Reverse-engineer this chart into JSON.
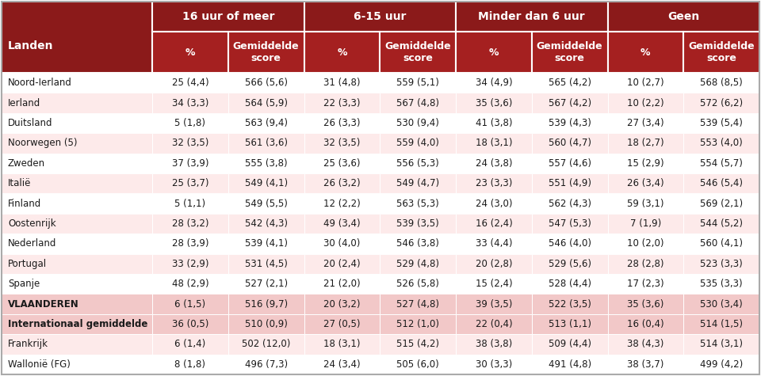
{
  "title_row": [
    "16 uur of meer",
    "6-15 uur",
    "Minder dan 6 uur",
    "Geen"
  ],
  "sub_headers": [
    "%",
    "Gemiddelde\nscore"
  ],
  "col_header": "Landen",
  "rows": [
    {
      "land": "Noord-Ierland",
      "bold": false,
      "data": [
        "25 (4,4)",
        "566 (5,6)",
        "31 (4,8)",
        "559 (5,1)",
        "34 (4,9)",
        "565 (4,2)",
        "10 (2,7)",
        "568 (8,5)"
      ]
    },
    {
      "land": "Ierland",
      "bold": false,
      "data": [
        "34 (3,3)",
        "564 (5,9)",
        "22 (3,3)",
        "567 (4,8)",
        "35 (3,6)",
        "567 (4,2)",
        "10 (2,2)",
        "572 (6,2)"
      ]
    },
    {
      "land": "Duitsland",
      "bold": false,
      "data": [
        "5 (1,8)",
        "563 (9,4)",
        "26 (3,3)",
        "530 (9,4)",
        "41 (3,8)",
        "539 (4,3)",
        "27 (3,4)",
        "539 (5,4)"
      ]
    },
    {
      "land": "Noorwegen (5)",
      "bold": false,
      "data": [
        "32 (3,5)",
        "561 (3,6)",
        "32 (3,5)",
        "559 (4,0)",
        "18 (3,1)",
        "560 (4,7)",
        "18 (2,7)",
        "553 (4,0)"
      ]
    },
    {
      "land": "Zweden",
      "bold": false,
      "data": [
        "37 (3,9)",
        "555 (3,8)",
        "25 (3,6)",
        "556 (5,3)",
        "24 (3,8)",
        "557 (4,6)",
        "15 (2,9)",
        "554 (5,7)"
      ]
    },
    {
      "land": "Italië",
      "bold": false,
      "data": [
        "25 (3,7)",
        "549 (4,1)",
        "26 (3,2)",
        "549 (4,7)",
        "23 (3,3)",
        "551 (4,9)",
        "26 (3,4)",
        "546 (5,4)"
      ]
    },
    {
      "land": "Finland",
      "bold": false,
      "data": [
        "5 (1,1)",
        "549 (5,5)",
        "12 (2,2)",
        "563 (5,3)",
        "24 (3,0)",
        "562 (4,3)",
        "59 (3,1)",
        "569 (2,1)"
      ]
    },
    {
      "land": "Oostenrijk",
      "bold": false,
      "data": [
        "28 (3,2)",
        "542 (4,3)",
        "49 (3,4)",
        "539 (3,5)",
        "16 (2,4)",
        "547 (5,3)",
        "7 (1,9)",
        "544 (5,2)"
      ]
    },
    {
      "land": "Nederland",
      "bold": false,
      "data": [
        "28 (3,9)",
        "539 (4,1)",
        "30 (4,0)",
        "546 (3,8)",
        "33 (4,4)",
        "546 (4,0)",
        "10 (2,0)",
        "560 (4,1)"
      ]
    },
    {
      "land": "Portugal",
      "bold": false,
      "data": [
        "33 (2,9)",
        "531 (4,5)",
        "20 (2,4)",
        "529 (4,8)",
        "20 (2,8)",
        "529 (5,6)",
        "28 (2,8)",
        "523 (3,3)"
      ]
    },
    {
      "land": "Spanje",
      "bold": false,
      "data": [
        "48 (2,9)",
        "527 (2,1)",
        "21 (2,0)",
        "526 (5,8)",
        "15 (2,4)",
        "528 (4,4)",
        "17 (2,3)",
        "535 (3,3)"
      ]
    },
    {
      "land": "VLAANDEREN",
      "bold": true,
      "data": [
        "6 (1,5)",
        "516 (9,7)",
        "20 (3,2)",
        "527 (4,8)",
        "39 (3,5)",
        "522 (3,5)",
        "35 (3,6)",
        "530 (3,4)"
      ]
    },
    {
      "land": "Internationaal gemiddelde",
      "bold": true,
      "data": [
        "36 (0,5)",
        "510 (0,9)",
        "27 (0,5)",
        "512 (1,0)",
        "22 (0,4)",
        "513 (1,1)",
        "16 (0,4)",
        "514 (1,5)"
      ]
    },
    {
      "land": "Frankrijk",
      "bold": false,
      "data": [
        "6 (1,4)",
        "502 (12,0)",
        "18 (3,1)",
        "515 (4,2)",
        "38 (3,8)",
        "509 (4,4)",
        "38 (4,3)",
        "514 (3,1)"
      ]
    },
    {
      "land": "Wallonië (FG)",
      "bold": false,
      "data": [
        "8 (1,8)",
        "496 (7,3)",
        "24 (3,4)",
        "505 (6,0)",
        "30 (3,3)",
        "491 (4,8)",
        "38 (3,7)",
        "499 (4,2)"
      ]
    }
  ],
  "header_bg": "#8B1A1A",
  "subheader_bg": "#A52020",
  "row_bg_white": "#FFFFFF",
  "row_bg_pink": "#FDEAEA",
  "row_bg_highlight": "#F2C8C8",
  "header_text_color": "#FFFFFF",
  "data_text_color": "#1A1A1A",
  "fig_width": 9.6,
  "fig_height": 4.75,
  "dpi": 100
}
